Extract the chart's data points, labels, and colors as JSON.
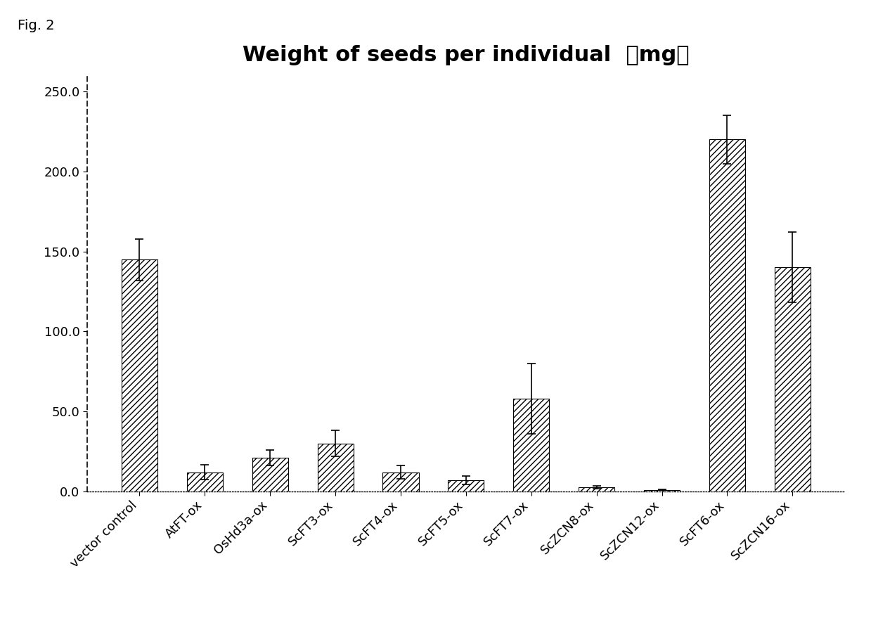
{
  "title": "Weight of seeds per individual 　（mg）",
  "title_fontsize": 22,
  "title_fontweight": "bold",
  "fig_label": "Fig. 2",
  "categories": [
    "vector control",
    "AtFT-ox",
    "OsHd3a-ox",
    "ScFT3-ox",
    "ScFT4-ox",
    "ScFT5-ox",
    "ScFT7-ox",
    "ScZCN8-ox",
    "ScZCN12-ox",
    "ScFT6-ox",
    "ScZCN16-ox"
  ],
  "values": [
    145.0,
    12.0,
    21.0,
    30.0,
    12.0,
    7.0,
    58.0,
    2.5,
    1.0,
    220.0,
    140.0
  ],
  "errors": [
    13.0,
    4.5,
    5.0,
    8.0,
    4.0,
    2.5,
    22.0,
    1.0,
    0.3,
    15.0,
    22.0
  ],
  "ylim": [
    0,
    260
  ],
  "yticks": [
    0.0,
    50.0,
    100.0,
    150.0,
    200.0,
    250.0
  ],
  "bar_color": "white",
  "bar_edgecolor": "black",
  "hatch": "////",
  "bar_width": 0.55,
  "figsize": [
    12.39,
    8.96
  ],
  "dpi": 100,
  "background_color": "white",
  "fig_label_fontsize": 14,
  "tick_fontsize": 13,
  "xlabel_rotation": 45,
  "capsize": 4
}
